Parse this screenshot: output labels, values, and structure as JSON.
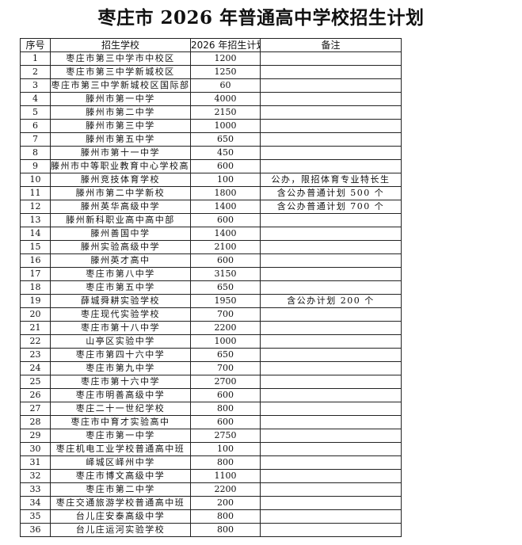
{
  "title": "枣庄市 2026 年普通高中学校招生计划",
  "headers": [
    "序号",
    "招生学校",
    "2026 年招生计划",
    "备注"
  ],
  "rows": [
    {
      "no": "1",
      "school": "枣庄市第三中学市中校区",
      "plan": "1200",
      "note": ""
    },
    {
      "no": "2",
      "school": "枣庄市第三中学新城校区",
      "plan": "1250",
      "note": ""
    },
    {
      "no": "3",
      "school": "枣庄市第三中学新城校区国际部",
      "plan": "60",
      "note": ""
    },
    {
      "no": "4",
      "school": "滕州市第一中学",
      "plan": "4000",
      "note": ""
    },
    {
      "no": "5",
      "school": "滕州市第二中学",
      "plan": "2150",
      "note": ""
    },
    {
      "no": "6",
      "school": "滕州市第三中学",
      "plan": "1000",
      "note": ""
    },
    {
      "no": "7",
      "school": "滕州市第五中学",
      "plan": "650",
      "note": ""
    },
    {
      "no": "8",
      "school": "滕州市第十一中学",
      "plan": "450",
      "note": ""
    },
    {
      "no": "9",
      "school": "滕州市中等职业教育中心学校高中部",
      "plan": "600",
      "note": ""
    },
    {
      "no": "10",
      "school": "滕州竞技体育学校",
      "plan": "100",
      "note": "公办，限招体育专业特长生"
    },
    {
      "no": "11",
      "school": "滕州市第二中学新校",
      "plan": "1800",
      "note": "含公办普通计划 500 个"
    },
    {
      "no": "12",
      "school": "滕州英华高级中学",
      "plan": "1400",
      "note": "含公办普通计划 700 个"
    },
    {
      "no": "13",
      "school": "滕州新科职业高中高中部",
      "plan": "600",
      "note": ""
    },
    {
      "no": "14",
      "school": "滕州善国中学",
      "plan": "1400",
      "note": ""
    },
    {
      "no": "15",
      "school": "滕州实验高级中学",
      "plan": "2100",
      "note": ""
    },
    {
      "no": "16",
      "school": "滕州英才高中",
      "plan": "600",
      "note": ""
    },
    {
      "no": "17",
      "school": "枣庄市第八中学",
      "plan": "3150",
      "note": ""
    },
    {
      "no": "18",
      "school": "枣庄市第五中学",
      "plan": "650",
      "note": ""
    },
    {
      "no": "19",
      "school": "薛城舜耕实验学校",
      "plan": "1950",
      "note": "含公办计划 200 个"
    },
    {
      "no": "20",
      "school": "枣庄现代实验学校",
      "plan": "700",
      "note": ""
    },
    {
      "no": "21",
      "school": "枣庄市第十八中学",
      "plan": "2200",
      "note": ""
    },
    {
      "no": "22",
      "school": "山亭区实验中学",
      "plan": "1000",
      "note": ""
    },
    {
      "no": "23",
      "school": "枣庄市第四十六中学",
      "plan": "650",
      "note": ""
    },
    {
      "no": "24",
      "school": "枣庄市第九中学",
      "plan": "700",
      "note": ""
    },
    {
      "no": "25",
      "school": "枣庄市第十六中学",
      "plan": "2700",
      "note": ""
    },
    {
      "no": "26",
      "school": "枣庄市明善高级中学",
      "plan": "600",
      "note": ""
    },
    {
      "no": "27",
      "school": "枣庄二十一世纪学校",
      "plan": "800",
      "note": ""
    },
    {
      "no": "28",
      "school": "枣庄市中育才实验高中",
      "plan": "600",
      "note": ""
    },
    {
      "no": "29",
      "school": "枣庄市第一中学",
      "plan": "2750",
      "note": ""
    },
    {
      "no": "30",
      "school": "枣庄机电工业学校普通高中班",
      "plan": "100",
      "note": ""
    },
    {
      "no": "31",
      "school": "峄城区峄州中学",
      "plan": "800",
      "note": ""
    },
    {
      "no": "32",
      "school": "枣庄市博文高级中学",
      "plan": "1100",
      "note": ""
    },
    {
      "no": "33",
      "school": "枣庄市第二中学",
      "plan": "2200",
      "note": ""
    },
    {
      "no": "34",
      "school": "枣庄交通旅游学校普通高中班",
      "plan": "200",
      "note": ""
    },
    {
      "no": "35",
      "school": "台儿庄安泰高级中学",
      "plan": "800",
      "note": ""
    },
    {
      "no": "36",
      "school": "台儿庄运河实验学校",
      "plan": "800",
      "note": ""
    }
  ]
}
